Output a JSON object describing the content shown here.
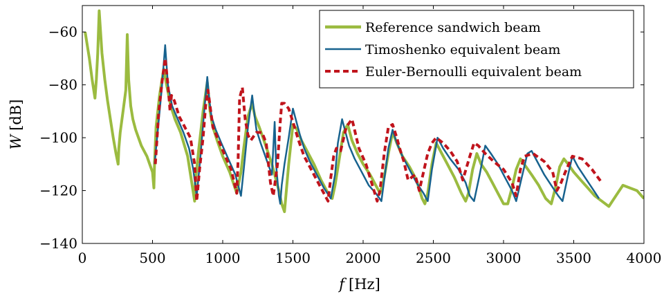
{
  "chart_data": {
    "type": "line",
    "title": "",
    "xlabel": {
      "symbol": "f",
      "unit": "[Hz]"
    },
    "ylabel": {
      "symbol": "W",
      "unit": "[dB]"
    },
    "xlim": [
      0,
      4000
    ],
    "ylim": [
      -140,
      -50
    ],
    "xticks": [
      {
        "value": 0,
        "label": "0"
      },
      {
        "value": 500,
        "label": "500"
      },
      {
        "value": 1000,
        "label": "1000"
      },
      {
        "value": 1500,
        "label": "1500"
      },
      {
        "value": 2000,
        "label": "2000"
      },
      {
        "value": 2500,
        "label": "2500"
      },
      {
        "value": 3000,
        "label": "3000"
      },
      {
        "value": 3500,
        "label": "3500"
      },
      {
        "value": 4000,
        "label": "4000"
      }
    ],
    "yticks": [
      {
        "value": -60,
        "label": "−60"
      },
      {
        "value": -80,
        "label": "−80"
      },
      {
        "value": -100,
        "label": "−100"
      },
      {
        "value": -120,
        "label": "−120"
      },
      {
        "value": -140,
        "label": "−140"
      }
    ],
    "grid": false,
    "legend_position": "top-right",
    "series": [
      {
        "name": "Reference sandwich beam",
        "color": "#9bbb40",
        "style": "solid-thick",
        "x": [
          20,
          50,
          70,
          90,
          100,
          110,
          120,
          140,
          160,
          180,
          200,
          220,
          240,
          255,
          260,
          270,
          290,
          310,
          320,
          330,
          345,
          360,
          380,
          400,
          420,
          440,
          460,
          480,
          500,
          510,
          515,
          525,
          550,
          580,
          600,
          630,
          660,
          700,
          750,
          800,
          805,
          830,
          860,
          890,
          910,
          930,
          960,
          1000,
          1050,
          1100,
          1130,
          1150,
          1180,
          1210,
          1230,
          1260,
          1300,
          1350,
          1400,
          1420,
          1440,
          1470,
          1500,
          1530,
          1560,
          1600,
          1650,
          1700,
          1750,
          1780,
          1800,
          1830,
          1860,
          1890,
          1920,
          1960,
          2000,
          2050,
          2100,
          2120,
          2150,
          2180,
          2210,
          2240,
          2280,
          2330,
          2380,
          2420,
          2440,
          2460,
          2490,
          2520,
          2560,
          2600,
          2650,
          2700,
          2730,
          2750,
          2780,
          2810,
          2840,
          2880,
          2920,
          2960,
          3000,
          3030,
          3060,
          3090,
          3120,
          3160,
          3200,
          3250,
          3300,
          3340,
          3370,
          3400,
          3430,
          3460,
          3500,
          3550,
          3600,
          3650,
          3700,
          3750,
          3800,
          3850,
          3900,
          3950,
          4000
        ],
        "y": [
          -60,
          -70,
          -78,
          -85,
          -78,
          -68,
          -52,
          -68,
          -78,
          -86,
          -93,
          -100,
          -106,
          -110,
          -104,
          -98,
          -90,
          -82,
          -61,
          -78,
          -88,
          -93,
          -97,
          -100,
          -103,
          -105,
          -107,
          -110,
          -113,
          -119,
          -109,
          -96,
          -84,
          -74,
          -80,
          -88,
          -93,
          -98,
          -107,
          -124,
          -117,
          -104,
          -90,
          -79,
          -90,
          -96,
          -101,
          -107,
          -113,
          -121,
          -113,
          -104,
          -92,
          -87,
          -92,
          -96,
          -102,
          -110,
          -120,
          -125,
          -128,
          -110,
          -95,
          -97,
          -101,
          -105,
          -110,
          -116,
          -121,
          -123,
          -118,
          -108,
          -98,
          -95,
          -101,
          -106,
          -110,
          -114,
          -119,
          -121,
          -115,
          -106,
          -98,
          -102,
          -107,
          -111,
          -116,
          -123,
          -125,
          -121,
          -110,
          -102,
          -106,
          -110,
          -115,
          -121,
          -124,
          -121,
          -112,
          -106,
          -110,
          -113,
          -117,
          -121,
          -125,
          -125,
          -119,
          -112,
          -108,
          -111,
          -114,
          -118,
          -123,
          -125,
          -119,
          -111,
          -108,
          -110,
          -113,
          -116,
          -119,
          -122,
          -124,
          -126,
          -122,
          -118,
          -119,
          -120,
          -123
        ]
      },
      {
        "name": "Timoshenko equivalent beam",
        "color": "#17628e",
        "style": "solid",
        "x": [
          515,
          540,
          565,
          590,
          610,
          640,
          680,
          720,
          760,
          790,
          815,
          840,
          865,
          890,
          905,
          920,
          950,
          990,
          1040,
          1090,
          1130,
          1150,
          1180,
          1210,
          1230,
          1240,
          1270,
          1310,
          1350,
          1370,
          1380,
          1400,
          1410,
          1420,
          1440,
          1470,
          1500,
          1530,
          1550,
          1580,
          1620,
          1670,
          1720,
          1770,
          1800,
          1820,
          1850,
          1880,
          1900,
          1940,
          1990,
          2040,
          2090,
          2130,
          2150,
          2180,
          2210,
          2240,
          2280,
          2330,
          2380,
          2430,
          2460,
          2490,
          2530,
          2570,
          2620,
          2680,
          2730,
          2760,
          2790,
          2830,
          2870,
          2910,
          2960,
          3010,
          3060,
          3090,
          3130,
          3170,
          3200,
          3240,
          3290,
          3340,
          3390,
          3420,
          3460,
          3490,
          3530,
          3580,
          3630,
          3680
        ],
        "y": [
          -110,
          -96,
          -82,
          -65,
          -80,
          -88,
          -93,
          -98,
          -104,
          -112,
          -122,
          -108,
          -92,
          -77,
          -86,
          -92,
          -97,
          -102,
          -108,
          -114,
          -122,
          -112,
          -96,
          -84,
          -93,
          -97,
          -102,
          -108,
          -114,
          -94,
          -110,
          -122,
          -125,
          -118,
          -110,
          -100,
          -89,
          -95,
          -99,
          -104,
          -109,
          -114,
          -119,
          -123,
          -114,
          -102,
          -93,
          -99,
          -103,
          -108,
          -113,
          -118,
          -121,
          -124,
          -116,
          -104,
          -97,
          -102,
          -107,
          -112,
          -117,
          -121,
          -124,
          -112,
          -100,
          -104,
          -108,
          -112,
          -117,
          -122,
          -124,
          -114,
          -103,
          -106,
          -110,
          -115,
          -120,
          -124,
          -115,
          -106,
          -105,
          -109,
          -114,
          -118,
          -122,
          -124,
          -114,
          -107,
          -111,
          -115,
          -119,
          -123
        ]
      },
      {
        "name": "Euler-Bernoulli equivalent beam",
        "color": "#c0141c",
        "style": "dashed",
        "x": [
          520,
          545,
          570,
          590,
          610,
          625,
          635,
          655,
          690,
          730,
          770,
          800,
          815,
          835,
          860,
          880,
          895,
          930,
          970,
          1010,
          1060,
          1100,
          1110,
          1120,
          1140,
          1160,
          1180,
          1200,
          1240,
          1280,
          1310,
          1340,
          1360,
          1390,
          1410,
          1420,
          1440,
          1470,
          1500,
          1540,
          1580,
          1620,
          1670,
          1720,
          1750,
          1770,
          1790,
          1810,
          1840,
          1880,
          1920,
          1930,
          1970,
          2020,
          2060,
          2100,
          2120,
          2150,
          2180,
          2210,
          2240,
          2260,
          2290,
          2320,
          2370,
          2400,
          2430,
          2460,
          2490,
          2520,
          2570,
          2620,
          2670,
          2710,
          2760,
          2790,
          2820,
          2870,
          2930,
          3000,
          3060,
          3090,
          3120,
          3150,
          3210,
          3290,
          3350,
          3380,
          3410,
          3440,
          3490,
          3560,
          3630,
          3700
        ],
        "y": [
          -110,
          -90,
          -78,
          -70,
          -80,
          -90,
          -84,
          -86,
          -92,
          -96,
          -100,
          -110,
          -124,
          -112,
          -100,
          -87,
          -82,
          -96,
          -101,
          -106,
          -112,
          -121,
          -108,
          -85,
          -81,
          -93,
          -99,
          -101,
          -98,
          -98,
          -102,
          -117,
          -122,
          -110,
          -94,
          -87,
          -87,
          -89,
          -94,
          -101,
          -107,
          -111,
          -116,
          -121,
          -124,
          -115,
          -107,
          -104,
          -105,
          -96,
          -93,
          -95,
          -104,
          -110,
          -117,
          -124,
          -120,
          -106,
          -96,
          -95,
          -100,
          -104,
          -109,
          -116,
          -114,
          -120,
          -113,
          -106,
          -102,
          -100,
          -102,
          -105,
          -109,
          -116,
          -107,
          -102,
          -103,
          -106,
          -109,
          -112,
          -117,
          -122,
          -112,
          -107,
          -106,
          -109,
          -113,
          -120,
          -117,
          -113,
          -107,
          -108,
          -112,
          -117
        ]
      }
    ]
  }
}
